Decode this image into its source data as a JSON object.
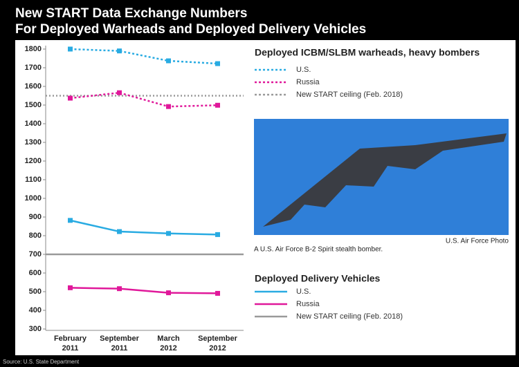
{
  "chart_data": {
    "type": "line",
    "title": "New START Data Exchange Numbers",
    "subtitle": "For Deployed Warheads and Deployed Delivery Vehicles",
    "categories": [
      [
        "February",
        "2011"
      ],
      [
        "September",
        "2011"
      ],
      [
        "March",
        "2012"
      ],
      [
        "September",
        "2012"
      ]
    ],
    "ylim": [
      300,
      1800
    ],
    "yticks": [
      300,
      400,
      500,
      600,
      700,
      800,
      900,
      1000,
      1100,
      1200,
      1300,
      1400,
      1500,
      1600,
      1700,
      1800
    ],
    "groups": [
      {
        "title": "Deployed ICBM/SLBM warheads, heavy bombers",
        "style": "dotted",
        "series": [
          {
            "name": "U.S.",
            "color": "#29abe2",
            "values": [
              1800,
              1790,
              1737,
              1722
            ]
          },
          {
            "name": "Russia",
            "color": "#e0189a",
            "values": [
              1537,
              1566,
              1492,
              1499
            ]
          }
        ],
        "ceiling": {
          "name": "New START ceiling (Feb. 2018)",
          "color": "#999999",
          "value": 1550
        }
      },
      {
        "title": "Deployed Delivery Vehicles",
        "style": "solid",
        "series": [
          {
            "name": "U.S.",
            "color": "#29abe2",
            "values": [
              882,
              822,
              812,
              806
            ]
          },
          {
            "name": "Russia",
            "color": "#e0189a",
            "values": [
              521,
              516,
              494,
              491
            ]
          }
        ],
        "ceiling": {
          "name": "New START ceiling (Feb. 2018)",
          "color": "#999999",
          "value": 700
        }
      }
    ],
    "photo_caption": "A U.S. Air Force B-2 Spirit stealth bomber.",
    "photo_credit": "U.S. Air Force Photo",
    "source": "Source: U.S. State Department"
  }
}
